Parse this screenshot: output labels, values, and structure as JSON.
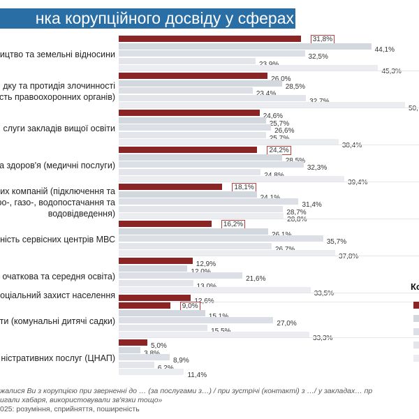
{
  "title": "нка корупційного досвіду у сферах",
  "colors": {
    "title_bg": "#2a6ea6",
    "highlight": "#8b2525",
    "series": [
      "#8b2525",
      "#d3d7de",
      "#dcdfe5",
      "#e3e5ea",
      "#ebedf0"
    ],
    "box": "#c0393b"
  },
  "chart_data": {
    "type": "bar",
    "orientation": "horizontal",
    "title": "нка корупційного досвіду у сферах",
    "xlim": [
      0,
      52
    ],
    "grid": false,
    "legend_placement": "right",
    "legend_title": "Ко",
    "categories": [
      {
        "label": [
          "ицтво та земельні відносини"
        ],
        "values": [
          31.8,
          44.1,
          32.5,
          23.9,
          45.3
        ],
        "labels": [
          "31,8%",
          "44,1%",
          "32,5%",
          "23,9%",
          "45,3%"
        ],
        "boxed": 0
      },
      {
        "label": [
          "дку та протидія злочинності",
          "сть правоохоронних органів)"
        ],
        "values": [
          26.0,
          28.5,
          23.4,
          32.7,
          50.0
        ],
        "labels": [
          "26,0%",
          "28,5%",
          "23,4%",
          "32,7%",
          "50,"
        ],
        "boxed": -1
      },
      {
        "label": [
          "слуги закладів вищої освіти"
        ],
        "values": [
          24.6,
          25.7,
          26.6,
          25.7,
          38.4
        ],
        "labels": [
          "24,6%",
          "25,7%",
          "26,6%",
          "25,7%",
          "38,4%"
        ],
        "boxed": -1
      },
      {
        "label": [
          "а здоров'я (медичні послуги)"
        ],
        "values": [
          24.2,
          28.5,
          32.3,
          24.8,
          39.4
        ],
        "labels": [
          "24,2%",
          "28,5%",
          "32,3%",
          "24,8%",
          "39,4%"
        ],
        "boxed": 0
      },
      {
        "label": [
          "их компаній (підключення та",
          "ро-, газо-, водопостачання та",
          "водовідведення)"
        ],
        "values": [
          18.1,
          24.1,
          31.4,
          28.7,
          28.8
        ],
        "labels": [
          "18,1%",
          "24,1%",
          "31,4%",
          "28,7%",
          "28,8%"
        ],
        "boxed": 0
      },
      {
        "label": [
          "ність сервісних центрів МВС"
        ],
        "values": [
          16.2,
          26.1,
          35.7,
          26.7,
          37.8
        ],
        "labels": [
          "16,2%",
          "26,1%",
          "35,7%",
          "26,7%",
          "37,8%"
        ],
        "boxed": 0
      },
      {
        "label": [
          "очаткова та середня освіта)"
        ],
        "values": [
          12.9,
          12.0,
          21.6,
          13.0,
          33.5
        ],
        "labels": [
          "12,9%",
          "12,0%",
          "21,6%",
          "13,0%",
          "33,5%"
        ],
        "boxed": -1
      },
      {
        "label": [
          "оціальний захист населення"
        ],
        "values": [
          12.6
        ],
        "labels": [
          "12,6%"
        ],
        "boxed": -1
      },
      {
        "label": [
          "ти (комунальні дитячі садки)"
        ],
        "values": [
          9.0,
          15.1,
          27.0,
          15.5,
          33.3
        ],
        "labels": [
          "9,0%",
          "15,1%",
          "27,0%",
          "15,5%",
          "33,3%"
        ],
        "boxed": 0
      },
      {
        "label": [
          "ністративних послуг (ЦНАП)"
        ],
        "values": [
          5.0,
          3.8,
          8.9,
          6.2,
          11.4
        ],
        "labels": [
          "5,0%",
          "3,8%",
          "8,9%",
          "6,2%",
          "11,4%"
        ],
        "boxed": -1
      }
    ]
  },
  "footer": [
    "жалися Ви з корупцією при зверненні до … (за послугами з…) / при зустрічі (контакті) з …/ у закладах… пр",
    "игали хабаря, використовували зв'язки тощо»",
    "025: розуміння, сприйняття, поширеність"
  ]
}
